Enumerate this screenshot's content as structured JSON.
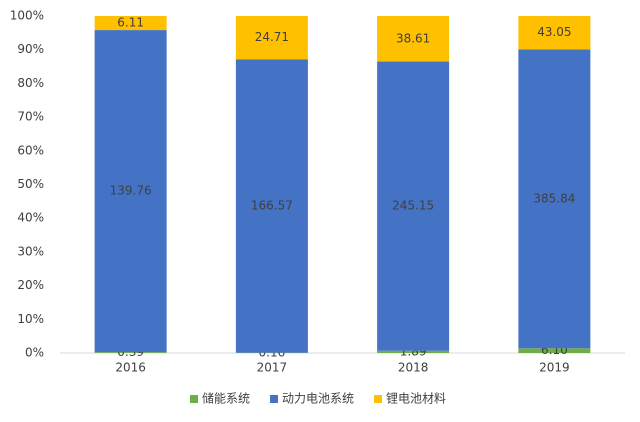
{
  "chart_data": {
    "type": "stacked_percent_bar",
    "categories": [
      "2016",
      "2017",
      "2018",
      "2019"
    ],
    "series": [
      {
        "name": "储能系统",
        "color": "#70ad47",
        "values": [
          0.39,
          0.16,
          1.89,
          6.1
        ],
        "value_labels": [
          "0.39",
          "0.16",
          "1.89",
          "6.10"
        ]
      },
      {
        "name": "动力电池系统",
        "color": "#4472c4",
        "values": [
          139.76,
          166.57,
          245.15,
          385.84
        ]
      },
      {
        "name": "锂电池材料",
        "color": "#ffc000",
        "values": [
          6.11,
          24.71,
          38.61,
          43.05
        ]
      }
    ],
    "ylim": [
      0,
      100
    ],
    "yticks": [
      {
        "value": 0,
        "label": "0%"
      },
      {
        "value": 10,
        "label": "10%"
      },
      {
        "value": 20,
        "label": "20%"
      },
      {
        "value": 30,
        "label": "30%"
      },
      {
        "value": 40,
        "label": "40%"
      },
      {
        "value": 50,
        "label": "50%"
      },
      {
        "value": 60,
        "label": "60%"
      },
      {
        "value": 70,
        "label": "70%"
      },
      {
        "value": 80,
        "label": "80%"
      },
      {
        "value": 90,
        "label": "90%"
      },
      {
        "value": 100,
        "label": "100%"
      }
    ],
    "grid": false,
    "legend": "bottom"
  }
}
